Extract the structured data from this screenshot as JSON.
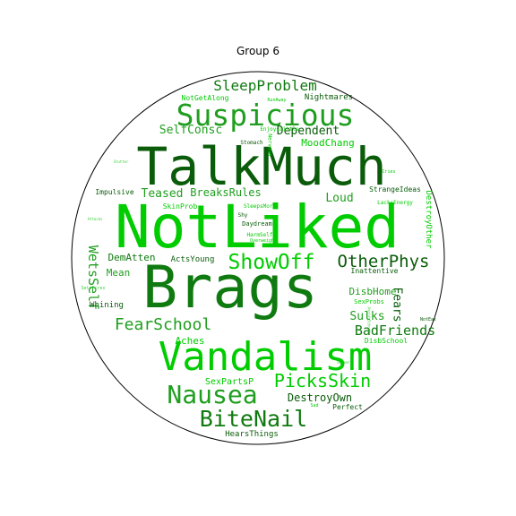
{
  "chart_data": {
    "type": "wordcloud",
    "title": "Group 6",
    "mask": "circle",
    "colors": {
      "darkest": "#0a5c0a",
      "dark": "#0f7a0f",
      "mid": "#1f9e1f",
      "bright": "#00cc00",
      "pale": "#3ed13e",
      "background": "#ffffff",
      "outline": "#000000"
    },
    "words": [
      {
        "text": "NotLiked",
        "weight": 1.0,
        "color": "bright"
      },
      {
        "text": "Brags",
        "weight": 0.94,
        "color": "dark"
      },
      {
        "text": "TalkMuch",
        "weight": 0.9,
        "color": "darkest"
      },
      {
        "text": "Vandalism",
        "weight": 0.74,
        "color": "bright"
      },
      {
        "text": "Suspicious",
        "weight": 0.55,
        "color": "mid"
      },
      {
        "text": "Nausea",
        "weight": 0.45,
        "color": "mid"
      },
      {
        "text": "BiteNail",
        "weight": 0.4,
        "color": "dark"
      },
      {
        "text": "ShowOff",
        "weight": 0.38,
        "color": "bright"
      },
      {
        "text": "OtherPhys",
        "weight": 0.33,
        "color": "darkest"
      },
      {
        "text": "PicksSkin",
        "weight": 0.33,
        "color": "bright"
      },
      {
        "text": "FearSchool",
        "weight": 0.3,
        "color": "mid"
      },
      {
        "text": "SleepProblem",
        "weight": 0.27,
        "color": "dark"
      },
      {
        "text": "BadFriends",
        "weight": 0.26,
        "color": "dark"
      },
      {
        "text": "WetsSelf",
        "weight": 0.25,
        "color": "mid"
      },
      {
        "text": "SelfConsc",
        "weight": 0.23,
        "color": "mid"
      },
      {
        "text": "Dependent",
        "weight": 0.23,
        "color": "darkest"
      },
      {
        "text": "Loud",
        "weight": 0.23,
        "color": "mid"
      },
      {
        "text": "Teased",
        "weight": 0.22,
        "color": "mid"
      },
      {
        "text": "Fears",
        "weight": 0.22,
        "color": "darkest"
      },
      {
        "text": "Sulks",
        "weight": 0.21,
        "color": "mid"
      },
      {
        "text": "BreaksRules",
        "weight": 0.2,
        "color": "mid"
      },
      {
        "text": "DestroyOwn",
        "weight": 0.2,
        "color": "darkest"
      },
      {
        "text": "MoodChang",
        "weight": 0.18,
        "color": "bright"
      },
      {
        "text": "Aches",
        "weight": 0.18,
        "color": "bright"
      },
      {
        "text": "DisbHome",
        "weight": 0.17,
        "color": "mid"
      },
      {
        "text": "Mean",
        "weight": 0.17,
        "color": "mid"
      },
      {
        "text": "DemAtten",
        "weight": 0.17,
        "color": "dark"
      },
      {
        "text": "SexPartsP",
        "weight": 0.16,
        "color": "bright"
      },
      {
        "text": "Nightmares",
        "weight": 0.15,
        "color": "darkest"
      },
      {
        "text": "StrangeIdeas",
        "weight": 0.14,
        "color": "darkest"
      },
      {
        "text": "Impulsive",
        "weight": 0.14,
        "color": "darkest"
      },
      {
        "text": "DestroyOther",
        "weight": 0.14,
        "color": "bright"
      },
      {
        "text": "ActsYoung",
        "weight": 0.14,
        "color": "darkest"
      },
      {
        "text": "Inattentive",
        "weight": 0.14,
        "color": "darkest"
      },
      {
        "text": "Whining",
        "weight": 0.14,
        "color": "darkest"
      },
      {
        "text": "Perfect",
        "weight": 0.14,
        "color": "darkest"
      },
      {
        "text": "HearsThings",
        "weight": 0.14,
        "color": "darkest"
      },
      {
        "text": "NotGetAlong",
        "weight": 0.13,
        "color": "bright"
      },
      {
        "text": "SkinProb",
        "weight": 0.13,
        "color": "bright"
      },
      {
        "text": "DisbSchool",
        "weight": 0.12,
        "color": "bright"
      },
      {
        "text": "SexProbs",
        "weight": 0.11,
        "color": "bright"
      },
      {
        "text": "Daydream",
        "weight": 0.11,
        "color": "darkest"
      },
      {
        "text": "Stomach",
        "weight": 0.1,
        "color": "darkest"
      },
      {
        "text": "Nervous",
        "weight": 0.1,
        "color": "bright"
      },
      {
        "text": "EnjoysLittle",
        "weight": 0.1,
        "color": "bright"
      },
      {
        "text": "LacksEnergy",
        "weight": 0.1,
        "color": "bright"
      },
      {
        "text": "Shy",
        "weight": 0.1,
        "color": "darkest"
      },
      {
        "text": "SleepsMore",
        "weight": 0.1,
        "color": "bright"
      },
      {
        "text": "HarmSelf",
        "weight": 0.1,
        "color": "bright"
      },
      {
        "text": "Overweight",
        "weight": 0.1,
        "color": "bright"
      },
      {
        "text": "RunAway",
        "weight": 0.09,
        "color": "bright"
      },
      {
        "text": "Cries",
        "weight": 0.09,
        "color": "bright"
      },
      {
        "text": "SetsFires",
        "weight": 0.09,
        "color": "pale"
      },
      {
        "text": "NotEat",
        "weight": 0.08,
        "color": "darkest"
      },
      {
        "text": "Sad",
        "weight": 0.08,
        "color": "bright"
      },
      {
        "text": "Temper",
        "weight": 0.08,
        "color": "bright"
      },
      {
        "text": "Attacks",
        "weight": 0.08,
        "color": "pale"
      },
      {
        "text": "Stutter",
        "weight": 0.07,
        "color": "pale"
      },
      {
        "text": "AvoidsSchool",
        "weight": 0.07,
        "color": "pale"
      }
    ]
  }
}
